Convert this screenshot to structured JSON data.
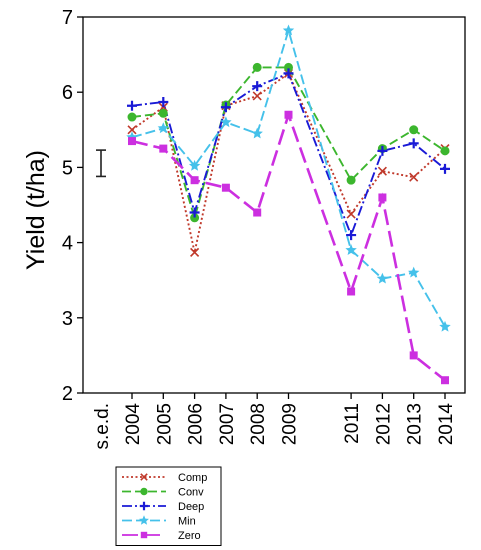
{
  "chart_data": {
    "type": "line",
    "ylabel": "Yield (t/ha)",
    "ylim": [
      2,
      7
    ],
    "yticks": [
      2,
      3,
      4,
      5,
      6,
      7
    ],
    "x_categories": [
      "s.e.d.",
      "2004",
      "2005",
      "2006",
      "2007",
      "2008",
      "2009",
      "2011",
      "2012",
      "2013",
      "2014"
    ],
    "x": [
      2004,
      2005,
      2006,
      2007,
      2008,
      2009,
      2011,
      2012,
      2013,
      2014
    ],
    "sed_bar": {
      "low": 4.88,
      "high": 5.23
    },
    "legend_position": "bottom-left, below plot",
    "series": [
      {
        "name": "Comp",
        "color": "#c0392b",
        "dash": "2 2.5",
        "marker": "x",
        "values": [
          5.5,
          5.8,
          3.87,
          5.82,
          5.95,
          6.25,
          4.38,
          4.95,
          4.87,
          5.25
        ]
      },
      {
        "name": "Conv",
        "color": "#3cb62e",
        "dash": "9 4",
        "marker": "circle",
        "values": [
          5.67,
          5.72,
          4.33,
          5.83,
          6.33,
          6.33,
          4.83,
          5.25,
          5.5,
          5.22
        ]
      },
      {
        "name": "Deep",
        "color": "#1a1ad6",
        "dash": "10 3 2 3",
        "marker": "plus",
        "values": [
          5.82,
          5.87,
          4.4,
          5.8,
          6.08,
          6.25,
          4.1,
          5.22,
          5.32,
          4.98
        ]
      },
      {
        "name": "Min",
        "color": "#45c1ea",
        "dash": "10 4",
        "marker": "star",
        "values": [
          5.4,
          5.52,
          5.02,
          5.6,
          5.45,
          6.82,
          3.9,
          3.52,
          3.6,
          2.88
        ]
      },
      {
        "name": "Zero",
        "color": "#cc2fe0",
        "dash": "16 6",
        "marker": "square",
        "values": [
          5.35,
          5.25,
          4.83,
          4.73,
          4.4,
          5.7,
          3.35,
          4.6,
          2.5,
          2.17
        ]
      }
    ]
  }
}
